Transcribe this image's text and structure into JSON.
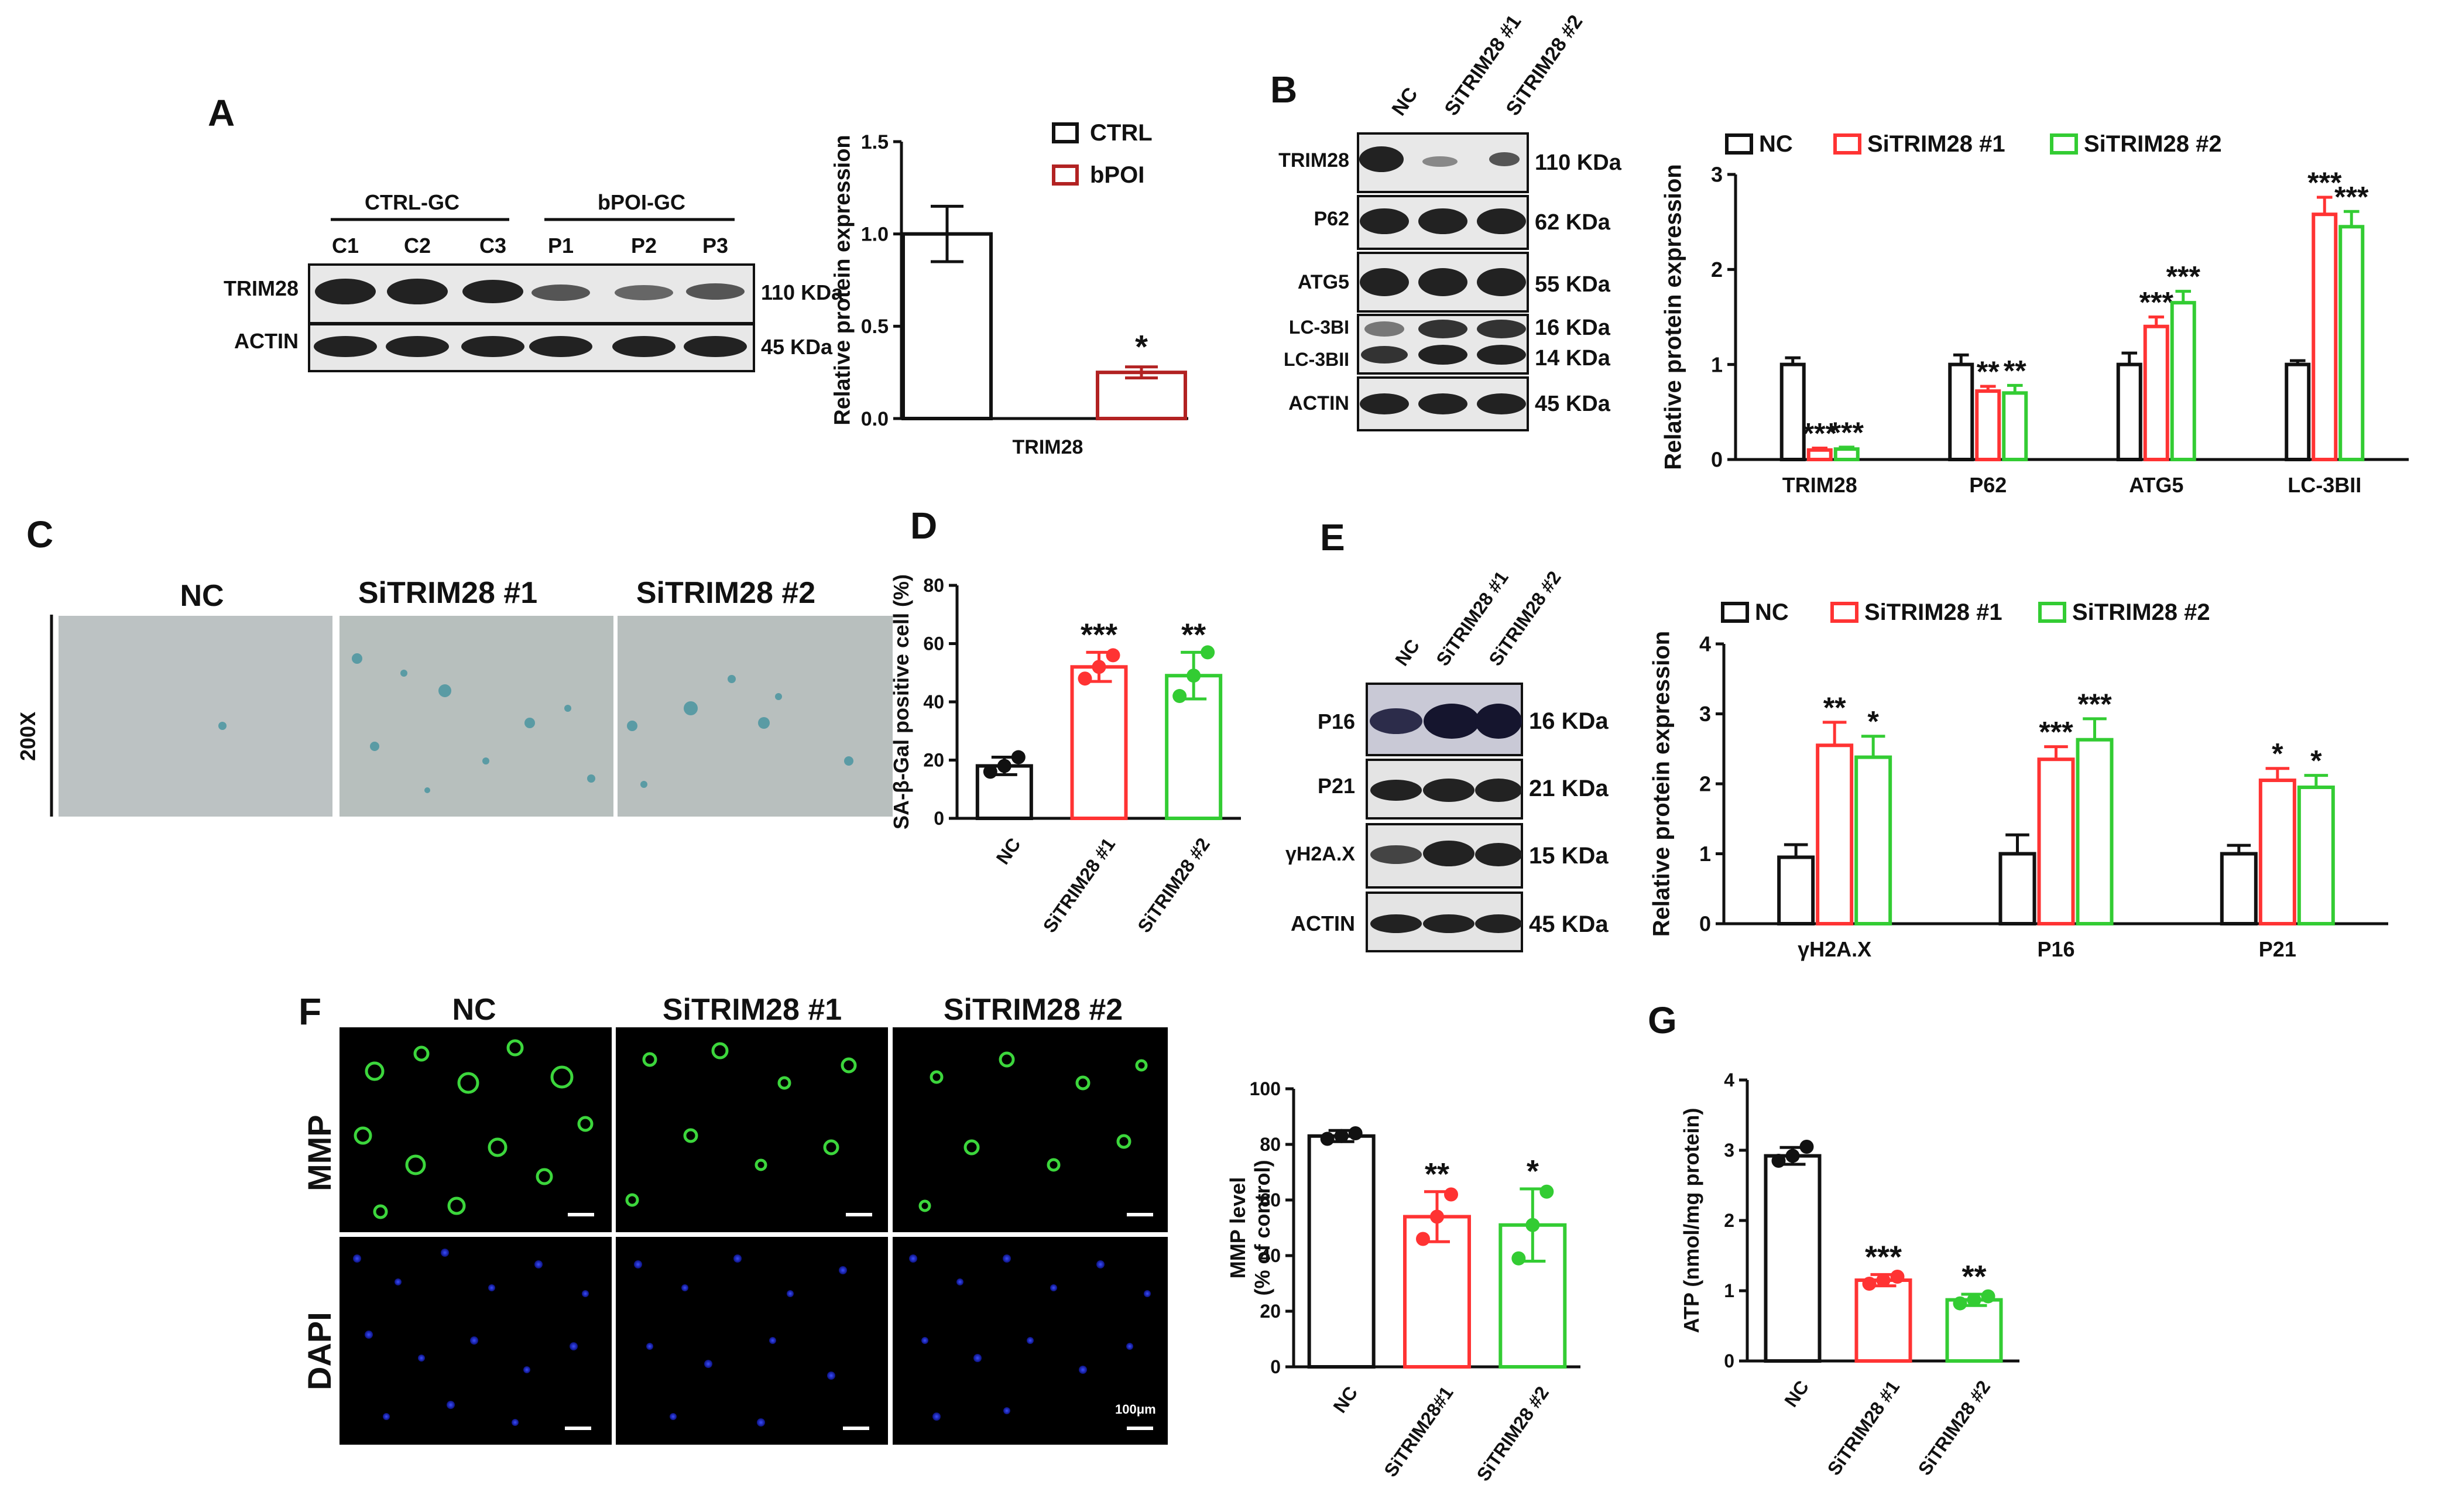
{
  "panels": {
    "A": {
      "letter": "A",
      "groups": [
        "CTRL-GC",
        "bPOI-GC"
      ],
      "lanes": [
        "C1",
        "C2",
        "C3",
        "P1",
        "P2",
        "P3"
      ],
      "rows": [
        {
          "name": "TRIM28",
          "size": "110 KDa"
        },
        {
          "name": "ACTIN",
          "size": "45 KDa"
        }
      ]
    },
    "B": {
      "letter": "B",
      "lanes": [
        "NC",
        "SiTRIM28 #1",
        "SiTRIM28 #2"
      ],
      "rows": [
        {
          "name": "TRIM28",
          "size": "110 KDa"
        },
        {
          "name": "P62",
          "size": "62 KDa"
        },
        {
          "name": "ATG5",
          "size": "55 KDa"
        },
        {
          "name": "LC-3BI",
          "size": "16 KDa"
        },
        {
          "name": "LC-3BII",
          "size": "14 KDa"
        },
        {
          "name": "ACTIN",
          "size": "45 KDa"
        }
      ]
    },
    "C": {
      "letter": "C",
      "columns": [
        "NC",
        "SiTRIM28 #1",
        "SiTRIM28 #2"
      ],
      "magnification": "200X"
    },
    "D": {
      "letter": "D"
    },
    "E": {
      "letter": "E",
      "lanes": [
        "NC",
        "SiTRIM28 #1",
        "SiTRIM28 #2"
      ],
      "rows": [
        {
          "name": "P16",
          "size": "16 KDa"
        },
        {
          "name": "P21",
          "size": "21 KDa"
        },
        {
          "name": "γH2A.X",
          "size": "15 KDa"
        },
        {
          "name": "ACTIN",
          "size": "45 KDa"
        }
      ]
    },
    "F": {
      "letter": "F",
      "columns": [
        "NC",
        "SiTRIM28 #1",
        "SiTRIM28 #2"
      ],
      "rows": [
        "MMP",
        "DAPI"
      ],
      "scale_bar": "100μm"
    },
    "G": {
      "letter": "G"
    }
  },
  "colors": {
    "nc": "#111111",
    "ctrl": "#111111",
    "bpoi": "#b22222",
    "si1": "#ff3333",
    "si2": "#33cc33"
  },
  "chart_data": [
    {
      "id": "A",
      "type": "bar",
      "categories": [
        "TRIM28"
      ],
      "series": [
        {
          "name": "CTRL",
          "values": [
            1.0
          ],
          "errors": [
            0.15
          ]
        },
        {
          "name": "bPOI",
          "values": [
            0.25
          ],
          "errors": [
            0.03
          ],
          "sig": [
            "*"
          ]
        }
      ],
      "ylabel": "Relative protein expression",
      "ylim": [
        0,
        1.5
      ],
      "yticks": [
        "0.0",
        "0.5",
        "1.0",
        "1.5"
      ],
      "legend": "top-right"
    },
    {
      "id": "B",
      "type": "bar",
      "categories": [
        "TRIM28",
        "P62",
        "ATG5",
        "LC-3BII"
      ],
      "series": [
        {
          "name": "NC",
          "values": [
            1.0,
            1.0,
            1.0,
            1.0
          ],
          "errors": [
            0.07,
            0.1,
            0.12,
            0.04
          ],
          "sig": [
            "",
            "",
            "",
            ""
          ]
        },
        {
          "name": "SiTRIM28 #1",
          "values": [
            0.1,
            0.72,
            1.4,
            2.58
          ],
          "errors": [
            0.02,
            0.05,
            0.1,
            0.18
          ],
          "sig": [
            "***",
            "**",
            "***",
            "***"
          ]
        },
        {
          "name": "SiTRIM28 #2",
          "values": [
            0.11,
            0.7,
            1.65,
            2.45
          ],
          "errors": [
            0.02,
            0.08,
            0.12,
            0.16
          ],
          "sig": [
            "***",
            "**",
            "***",
            "***"
          ]
        }
      ],
      "ylabel": "Relative protein expression",
      "ylim": [
        0,
        3
      ],
      "yticks": [
        "0",
        "1",
        "2",
        "3"
      ],
      "legend": "top"
    },
    {
      "id": "D",
      "type": "bar",
      "categories": [
        "NC",
        "SiTRIM28 #1",
        "SiTRIM28 #2"
      ],
      "values": [
        18,
        52,
        49
      ],
      "errors": [
        3,
        5,
        8
      ],
      "points": [
        [
          16,
          18,
          21
        ],
        [
          48,
          52,
          56
        ],
        [
          42,
          49,
          57
        ]
      ],
      "sig": [
        "",
        "***",
        "**"
      ],
      "ylabel": "SA-β-Gal positive cell (%)",
      "ylim": [
        0,
        80
      ],
      "yticks": [
        "0",
        "20",
        "40",
        "60",
        "80"
      ]
    },
    {
      "id": "E",
      "type": "bar",
      "categories": [
        "γH2A.X",
        "P16",
        "P21"
      ],
      "series": [
        {
          "name": "NC",
          "values": [
            0.95,
            1.0,
            1.0
          ],
          "errors": [
            0.18,
            0.27,
            0.12
          ],
          "sig": [
            "",
            "",
            ""
          ]
        },
        {
          "name": "SiTRIM28 #1",
          "values": [
            2.55,
            2.35,
            2.05
          ],
          "errors": [
            0.33,
            0.18,
            0.17
          ],
          "sig": [
            "**",
            "***",
            "*"
          ]
        },
        {
          "name": "SiTRIM28 #2",
          "values": [
            2.38,
            2.63,
            1.95
          ],
          "errors": [
            0.3,
            0.3,
            0.17
          ],
          "sig": [
            "*",
            "***",
            "*"
          ]
        }
      ],
      "ylabel": "Relative protein expression",
      "ylim": [
        0,
        4
      ],
      "yticks": [
        "0",
        "1",
        "2",
        "3",
        "4"
      ],
      "legend": "top"
    },
    {
      "id": "F",
      "type": "bar",
      "categories": [
        "NC",
        "SiTRIM28#1",
        "SiTRIM28 #2"
      ],
      "values": [
        83,
        54,
        51
      ],
      "errors": [
        2,
        9,
        13
      ],
      "points": [
        [
          82,
          83,
          84
        ],
        [
          46,
          54,
          62
        ],
        [
          39,
          51,
          63
        ]
      ],
      "sig": [
        "",
        "**",
        "*"
      ],
      "ylabel": "MMP level",
      "ylabel2": "(% of control)",
      "ylim": [
        0,
        100
      ],
      "yticks": [
        "0",
        "20",
        "40",
        "60",
        "80",
        "100"
      ]
    },
    {
      "id": "G",
      "type": "bar",
      "categories": [
        "NC",
        "SiTRIM28 #1",
        "SiTRIM28 #2"
      ],
      "values": [
        2.92,
        1.15,
        0.87
      ],
      "errors": [
        0.12,
        0.08,
        0.08
      ],
      "points": [
        [
          2.85,
          2.92,
          3.05
        ],
        [
          1.1,
          1.15,
          1.2
        ],
        [
          0.82,
          0.87,
          0.92
        ]
      ],
      "sig": [
        "",
        "***",
        "**"
      ],
      "ylabel": "ATP (nmol/mg protein)",
      "ylim": [
        0,
        4
      ],
      "yticks": [
        "0",
        "1",
        "2",
        "3",
        "4"
      ]
    }
  ]
}
